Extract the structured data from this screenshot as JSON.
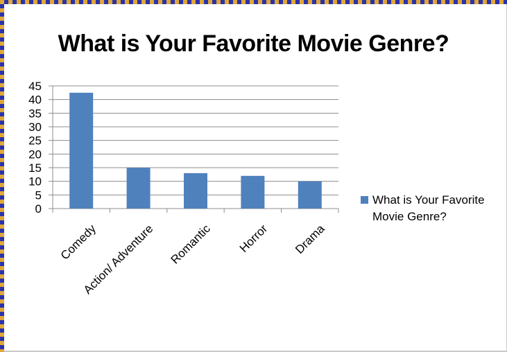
{
  "chart_data": {
    "type": "bar",
    "title": "What is Your Favorite Movie Genre?",
    "xlabel": "",
    "ylabel": "",
    "categories": [
      "Comedy",
      "Action/ Adventure",
      "Romantic",
      "Horror",
      "Drama"
    ],
    "series": [
      {
        "name": "What is Your Favorite Movie Genre?",
        "values": [
          42.5,
          15,
          13,
          12,
          10
        ]
      }
    ],
    "ylim": [
      0,
      45
    ],
    "yticks": [
      0,
      5,
      10,
      15,
      20,
      25,
      30,
      35,
      40,
      45
    ],
    "grid": true,
    "legend": "right",
    "bar_color": "#4f81bd"
  },
  "legend": {
    "line1": "What is Your Favorite",
    "line2": "Movie Genre?"
  }
}
